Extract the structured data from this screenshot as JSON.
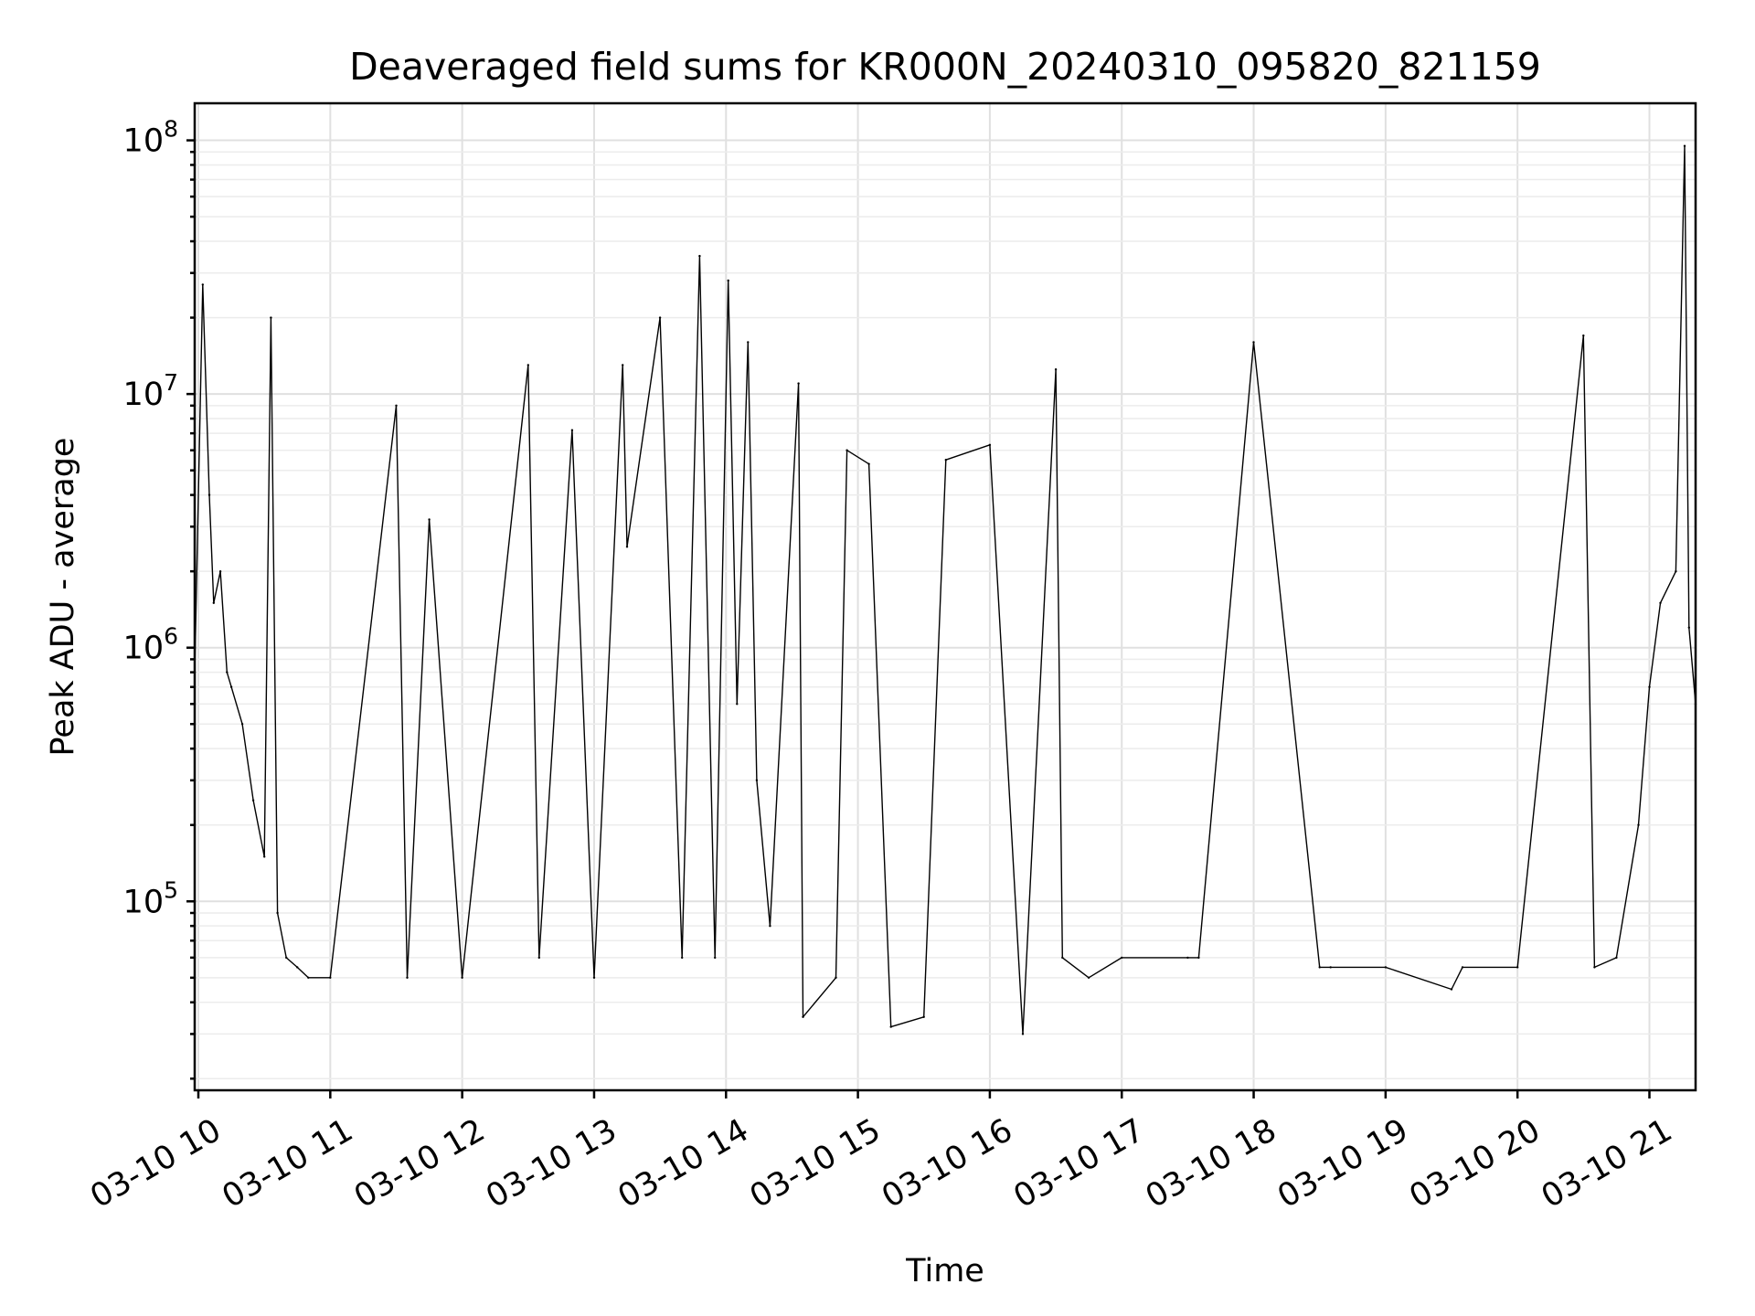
{
  "chart_data": {
    "type": "line",
    "title": "Deaveraged field sums for KR000N_20240310_095820_821159",
    "xlabel": "Time",
    "ylabel": "Peak ADU - average",
    "yscale": "log",
    "ylim": [
      18000,
      140000000
    ],
    "xlim": [
      "2024-03-10 09:58:20",
      "2024-03-10 21:21:00"
    ],
    "grid": true,
    "x_ticks": [
      "03-10 10",
      "03-10 11",
      "03-10 12",
      "03-10 13",
      "03-10 14",
      "03-10 15",
      "03-10 16",
      "03-10 17",
      "03-10 18",
      "03-10 19",
      "03-10 20",
      "03-10 21"
    ],
    "y_ticks": [
      {
        "base": "10",
        "exp": "5",
        "value": 100000
      },
      {
        "base": "10",
        "exp": "6",
        "value": 1000000
      },
      {
        "base": "10",
        "exp": "7",
        "value": 10000000
      },
      {
        "base": "10",
        "exp": "8",
        "value": 100000000
      }
    ],
    "series": [
      {
        "color": "#000000",
        "x": [
          "2024-03-10 09:58:20",
          "2024-03-10 10:02",
          "2024-03-10 10:05",
          "2024-03-10 10:07",
          "2024-03-10 10:10",
          "2024-03-10 10:13",
          "2024-03-10 10:15",
          "2024-03-10 10:20",
          "2024-03-10 10:25",
          "2024-03-10 10:30",
          "2024-03-10 10:33",
          "2024-03-10 10:36",
          "2024-03-10 10:40",
          "2024-03-10 10:45",
          "2024-03-10 10:50",
          "2024-03-10 11:00",
          "2024-03-10 11:30",
          "2024-03-10 11:35",
          "2024-03-10 11:45",
          "2024-03-10 12:00",
          "2024-03-10 12:30",
          "2024-03-10 12:35",
          "2024-03-10 12:50",
          "2024-03-10 13:00",
          "2024-03-10 13:13",
          "2024-03-10 13:15",
          "2024-03-10 13:30",
          "2024-03-10 13:40",
          "2024-03-10 13:48",
          "2024-03-10 13:55",
          "2024-03-10 14:01",
          "2024-03-10 14:05",
          "2024-03-10 14:10",
          "2024-03-10 14:14",
          "2024-03-10 14:20",
          "2024-03-10 14:33",
          "2024-03-10 14:35",
          "2024-03-10 14:50",
          "2024-03-10 14:55",
          "2024-03-10 15:05",
          "2024-03-10 15:15",
          "2024-03-10 15:30",
          "2024-03-10 15:40",
          "2024-03-10 16:00",
          "2024-03-10 16:15",
          "2024-03-10 16:30",
          "2024-03-10 16:33",
          "2024-03-10 16:45",
          "2024-03-10 17:00",
          "2024-03-10 17:30",
          "2024-03-10 17:35",
          "2024-03-10 18:00",
          "2024-03-10 18:30",
          "2024-03-10 18:35",
          "2024-03-10 19:00",
          "2024-03-10 19:30",
          "2024-03-10 19:35",
          "2024-03-10 20:00",
          "2024-03-10 20:30",
          "2024-03-10 20:35",
          "2024-03-10 20:45",
          "2024-03-10 20:55",
          "2024-03-10 21:00",
          "2024-03-10 21:05",
          "2024-03-10 21:12",
          "2024-03-10 21:16",
          "2024-03-10 21:18",
          "2024-03-10 21:21"
        ],
        "y": [
          800000,
          27000000,
          4000000,
          1500000,
          2000000,
          800000,
          700000,
          500000,
          250000,
          150000,
          20000000,
          90000,
          60000,
          55000,
          50000,
          50000,
          9000000,
          50000,
          3200000,
          50000,
          13000000,
          60000,
          7200000,
          50000,
          13000000,
          2500000,
          20000000,
          60000,
          35000000,
          60000,
          28000000,
          600000,
          16000000,
          300000,
          80000,
          11000000,
          35000,
          50000,
          6000000,
          5300000,
          32000,
          35000,
          5500000,
          6300000,
          30000,
          12500000,
          60000,
          50000,
          60000,
          60000,
          60000,
          16000000,
          55000,
          55000,
          55000,
          45000,
          55000,
          55000,
          17000000,
          55000,
          60000,
          200000,
          700000,
          1500000,
          2000000,
          95000000,
          1200000,
          600000
        ]
      }
    ]
  }
}
